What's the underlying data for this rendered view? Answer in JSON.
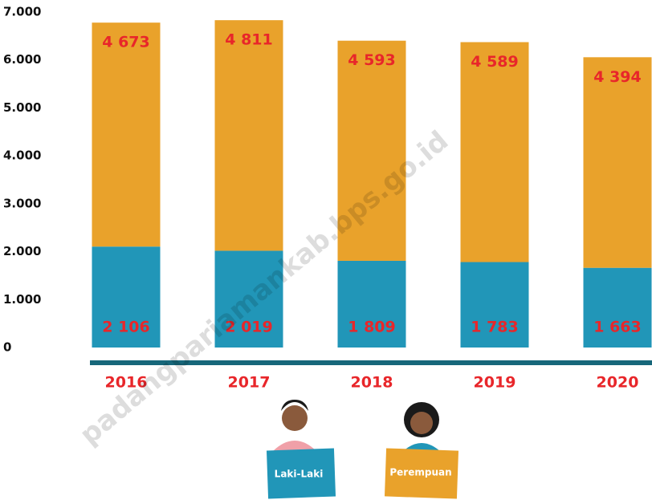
{
  "chart_data": {
    "type": "bar",
    "stacked": true,
    "categories": [
      "2016",
      "2017",
      "2018",
      "2019",
      "2020"
    ],
    "series": [
      {
        "name": "Laki-Laki",
        "color": "#2196b8",
        "values": [
          2106,
          2019,
          1809,
          1783,
          1663
        ],
        "value_labels": [
          "2 106",
          "2 019",
          "1 809",
          "1 783",
          "1 663"
        ]
      },
      {
        "name": "Perempuan",
        "color": "#e9a22b",
        "values": [
          4673,
          4811,
          4593,
          4589,
          4394
        ],
        "value_labels": [
          "4 673",
          "4 811",
          "4 593",
          "4 589",
          "4 394"
        ]
      }
    ],
    "ylim": [
      0,
      7000
    ],
    "yticks": [
      0,
      {
        "value": 1000,
        "label": "1.000"
      },
      {
        "value": 2000,
        "label": "2.000"
      },
      {
        "value": 3000,
        "label": "3.000"
      },
      {
        "value": 4000,
        "label": "4.000"
      },
      {
        "value": 5000,
        "label": "5.000"
      },
      {
        "value": 6000,
        "label": "6.000"
      },
      {
        "value": 7000,
        "label": "7.000"
      }
    ],
    "watermark": "padangpariamankab.bps.go.id"
  }
}
